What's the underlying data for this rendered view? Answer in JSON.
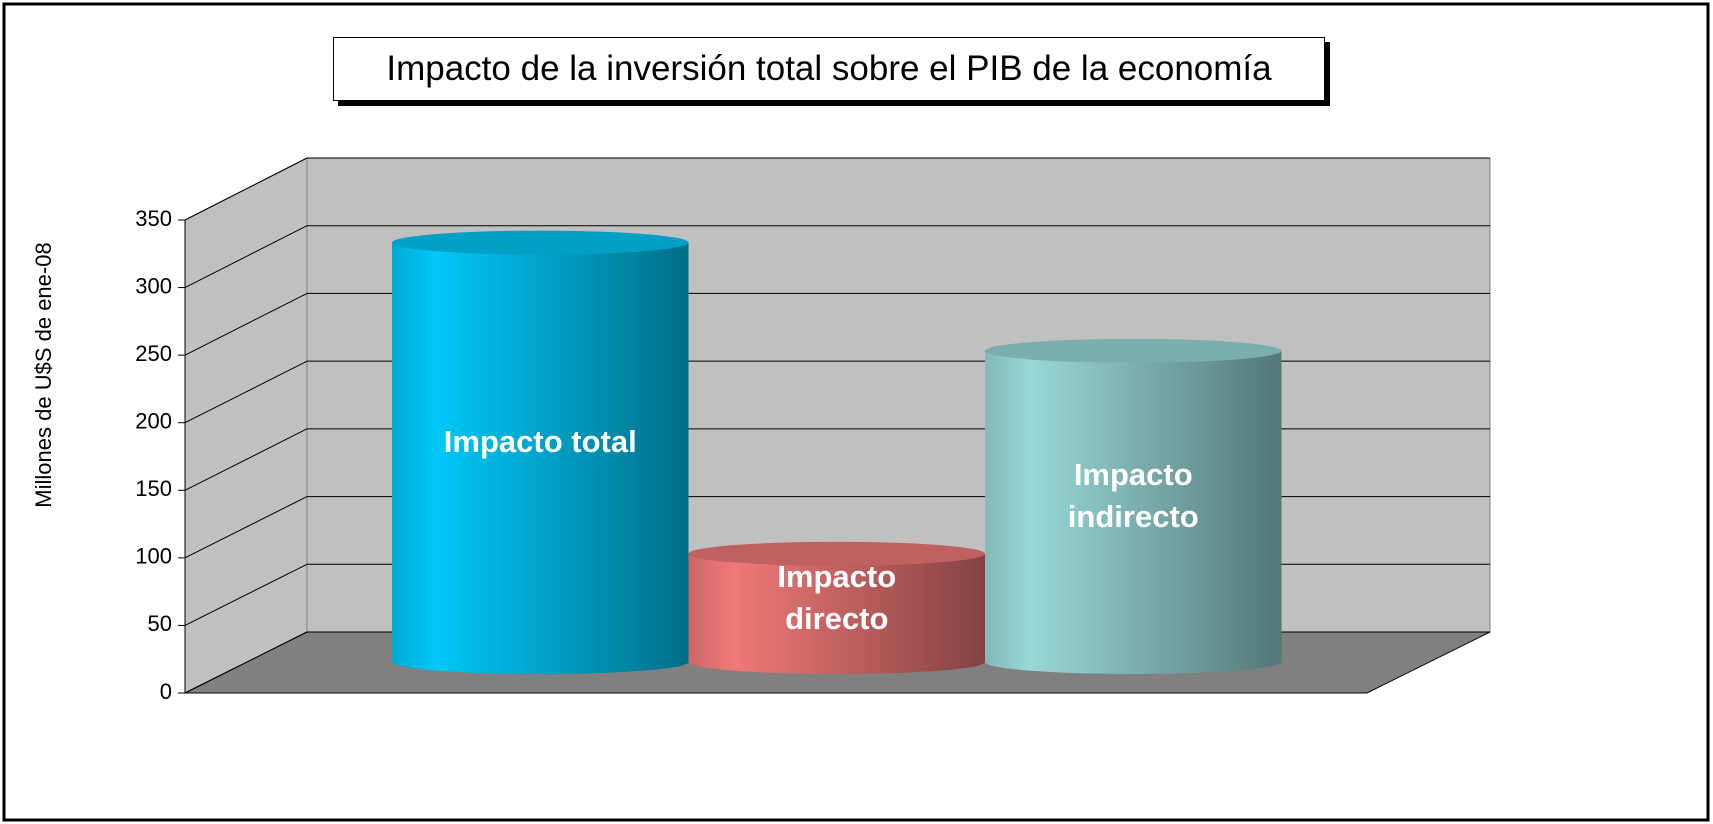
{
  "chart_data": {
    "type": "bar3d-cylinder",
    "title": "Impacto de la inversión total sobre el PIB de la economía",
    "y_label": "Millones de U$S de ene-08",
    "categories": [
      "Impacto total",
      "Impacto directo",
      "Impacto indirecto"
    ],
    "values": [
      310,
      80,
      230
    ],
    "colors": [
      "#00c8f8",
      "#f07878",
      "#98d8d8"
    ],
    "ylim": [
      0,
      350
    ],
    "yticks": [
      0,
      50,
      100,
      150,
      200,
      250,
      300,
      350
    ],
    "grid": true
  }
}
